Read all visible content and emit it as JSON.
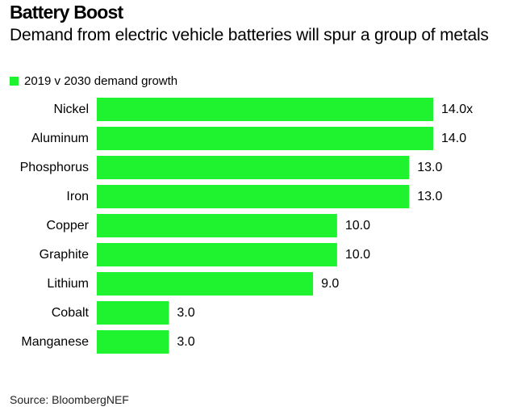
{
  "header": {
    "title": "Battery Boost",
    "subtitle": "Demand from electric vehicle batteries will spur a group of metals"
  },
  "legend": {
    "label": "2019 v 2030 demand growth",
    "color": "#1ff22e"
  },
  "chart_data": {
    "type": "bar",
    "orientation": "horizontal",
    "title": "Battery Boost",
    "subtitle": "Demand from electric vehicle batteries will spur a group of metals",
    "categories": [
      "Nickel",
      "Aluminum",
      "Phosphorus",
      "Iron",
      "Copper",
      "Graphite",
      "Lithium",
      "Cobalt",
      "Manganese"
    ],
    "series": [
      {
        "name": "2019 v 2030 demand growth",
        "values": [
          14.0,
          14.0,
          13.0,
          13.0,
          10.0,
          10.0,
          9.0,
          3.0,
          3.0
        ],
        "labels": [
          "14.0x",
          "14.0",
          "13.0",
          "13.0",
          "10.0",
          "10.0",
          "9.0",
          "3.0",
          "3.0"
        ],
        "color": "#1ff22e"
      }
    ],
    "xlim": [
      0,
      14.0
    ],
    "grid": false,
    "legend_position": "top-left"
  },
  "footer": {
    "source": "Source: BloombergNEF"
  }
}
